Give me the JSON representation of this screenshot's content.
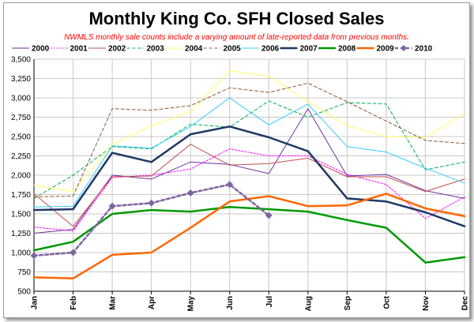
{
  "chart_data": {
    "type": "line",
    "title": "Monthly King Co. SFH Closed Sales",
    "subtitle": "NWMLS monthly sale counts include a varying amount of late-reported data from previous months.",
    "xlabel": "",
    "ylabel": "",
    "ylim": [
      500,
      3500
    ],
    "yticks": [
      500,
      750,
      1000,
      1250,
      1500,
      1750,
      2000,
      2250,
      2500,
      2750,
      3000,
      3250,
      3500
    ],
    "ytick_labels": [
      "500",
      "750",
      "1,000",
      "1,250",
      "1,500",
      "1,750",
      "2,000",
      "2,250",
      "2,500",
      "2,750",
      "3,000",
      "3,250",
      "3,500"
    ],
    "categories": [
      "Jan",
      "Feb",
      "Mar",
      "Apr",
      "May",
      "Jun",
      "Jul",
      "Aug",
      "Sep",
      "Oct",
      "Nov",
      "Dec"
    ],
    "grid": true,
    "legend_position": "top",
    "series": [
      {
        "name": "2000",
        "color": "#7030a0",
        "style": "solid",
        "width": 1,
        "marker": "none",
        "values": [
          1250,
          1300,
          2000,
          1950,
          2170,
          2140,
          2020,
          2860,
          1990,
          2010,
          1800,
          1700
        ]
      },
      {
        "name": "2001",
        "color": "#ff00ff",
        "style": "dotted",
        "width": 1,
        "marker": "none",
        "values": [
          1330,
          1280,
          1970,
          2000,
          2080,
          2340,
          2250,
          2250,
          2010,
          1880,
          1440,
          1720
        ]
      },
      {
        "name": "2002",
        "color": "#c0504d",
        "style": "solid",
        "width": 1,
        "marker": "none",
        "values": [
          1760,
          1340,
          1980,
          1990,
          2400,
          2130,
          2150,
          2220,
          1980,
          1980,
          1790,
          1950
        ]
      },
      {
        "name": "2003",
        "color": "#00b050",
        "style": "dashed",
        "width": 1,
        "marker": "none",
        "values": [
          1700,
          2000,
          2370,
          2340,
          2660,
          2620,
          2960,
          2750,
          2940,
          2920,
          2070,
          2170
        ]
      },
      {
        "name": "2004",
        "color": "#ffff66",
        "style": "solid",
        "width": 1,
        "marker": "none",
        "values": [
          1870,
          1790,
          2400,
          2640,
          2820,
          3350,
          3280,
          2950,
          2640,
          2500,
          2490,
          2800
        ]
      },
      {
        "name": "2005",
        "color": "#8b5a3c",
        "style": "dashed",
        "width": 1,
        "marker": "none",
        "values": [
          1720,
          1730,
          2860,
          2840,
          2900,
          3130,
          3070,
          3190,
          2950,
          2700,
          2450,
          2410
        ]
      },
      {
        "name": "2006",
        "color": "#33ccff",
        "style": "solid",
        "width": 1,
        "marker": "none",
        "values": [
          1590,
          1600,
          2380,
          2350,
          2630,
          3000,
          2650,
          2920,
          2370,
          2300,
          2090,
          1900
        ]
      },
      {
        "name": "2007",
        "color": "#1f3864",
        "style": "solid",
        "width": 2.5,
        "marker": "none",
        "values": [
          1550,
          1560,
          2290,
          2170,
          2530,
          2630,
          2490,
          2310,
          1700,
          1660,
          1520,
          1340
        ]
      },
      {
        "name": "2008",
        "color": "#009900",
        "style": "solid",
        "width": 2.5,
        "marker": "none",
        "values": [
          1030,
          1140,
          1500,
          1550,
          1530,
          1590,
          1560,
          1530,
          1420,
          1320,
          870,
          940
        ]
      },
      {
        "name": "2009",
        "color": "#ff6600",
        "style": "solid",
        "width": 2.5,
        "marker": "none",
        "values": [
          680,
          665,
          970,
          1000,
          1320,
          1660,
          1730,
          1600,
          1610,
          1760,
          1570,
          1470
        ]
      },
      {
        "name": "2010",
        "color": "#8064a2",
        "style": "dashed",
        "width": 2.5,
        "marker": "diamond",
        "values": [
          960,
          1000,
          1600,
          1640,
          1770,
          1880,
          1480,
          null,
          null,
          null,
          null,
          null
        ]
      }
    ]
  }
}
